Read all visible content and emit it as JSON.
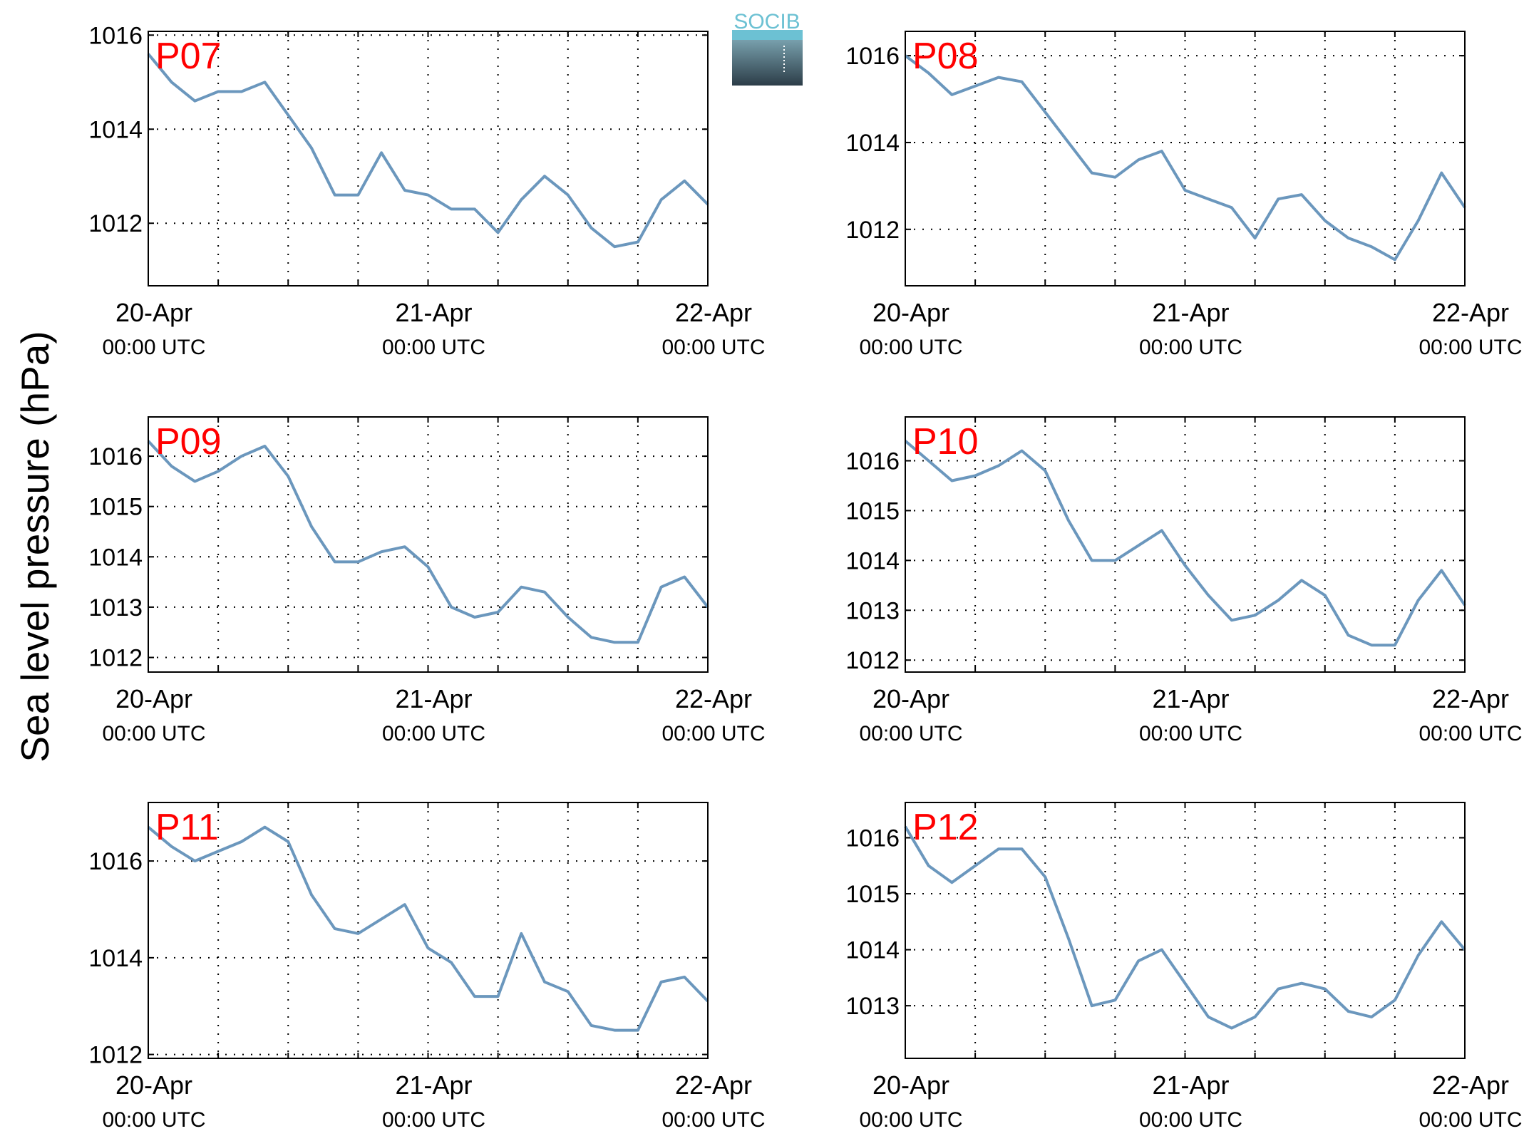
{
  "ylabel": "Sea level pressure (hPa)",
  "logo": "SOCIB",
  "chart_data": [
    {
      "type": "line",
      "label": "P07",
      "color": "#6b97bd",
      "grid": true,
      "x": [
        "20-Apr 00:00",
        "20-Apr 02:00",
        "20-Apr 04:00",
        "20-Apr 06:00",
        "20-Apr 08:00",
        "20-Apr 10:00",
        "20-Apr 12:00",
        "20-Apr 14:00",
        "20-Apr 16:00",
        "20-Apr 18:00",
        "20-Apr 20:00",
        "20-Apr 22:00",
        "21-Apr 00:00",
        "21-Apr 02:00",
        "21-Apr 04:00",
        "21-Apr 06:00",
        "21-Apr 08:00",
        "21-Apr 10:00",
        "21-Apr 12:00",
        "21-Apr 14:00",
        "21-Apr 16:00",
        "21-Apr 18:00",
        "21-Apr 20:00",
        "21-Apr 22:00",
        "22-Apr 00:00"
      ],
      "values": [
        1015.6,
        1015.0,
        1014.6,
        1014.8,
        1014.8,
        1015.0,
        1014.3,
        1013.6,
        1012.6,
        1012.6,
        1013.5,
        1012.7,
        1012.6,
        1012.3,
        1012.3,
        1011.8,
        1012.5,
        1013.0,
        1012.6,
        1011.9,
        1011.5,
        1011.6,
        1012.5,
        1012.9,
        1012.4
      ],
      "xlim": [
        "20-Apr 00:00",
        "22-Apr 00:00"
      ],
      "xticks": [
        {
          "value": "20-Apr 00:00",
          "label": [
            "20-Apr",
            "00:00 UTC"
          ]
        },
        {
          "value": "21-Apr 00:00",
          "label": [
            "21-Apr",
            "00:00 UTC"
          ]
        },
        {
          "value": "22-Apr 00:00",
          "label": [
            "22-Apr",
            "00:00 UTC"
          ]
        }
      ],
      "minor_xticks": [
        "20-Apr 06:00",
        "20-Apr 12:00",
        "20-Apr 18:00",
        "21-Apr 06:00",
        "21-Apr 12:00",
        "21-Apr 18:00"
      ],
      "ylim": [
        1010.67,
        1016.08
      ],
      "yticks": [
        1012,
        1014,
        1016
      ]
    },
    {
      "type": "line",
      "label": "P08",
      "color": "#6b97bd",
      "grid": true,
      "x": [
        "20-Apr 00:00",
        "20-Apr 02:00",
        "20-Apr 04:00",
        "20-Apr 06:00",
        "20-Apr 08:00",
        "20-Apr 10:00",
        "20-Apr 12:00",
        "20-Apr 14:00",
        "20-Apr 16:00",
        "20-Apr 18:00",
        "20-Apr 20:00",
        "20-Apr 22:00",
        "21-Apr 00:00",
        "21-Apr 02:00",
        "21-Apr 04:00",
        "21-Apr 06:00",
        "21-Apr 08:00",
        "21-Apr 10:00",
        "21-Apr 12:00",
        "21-Apr 14:00",
        "21-Apr 16:00",
        "21-Apr 18:00",
        "21-Apr 20:00",
        "21-Apr 22:00",
        "22-Apr 00:00"
      ],
      "values": [
        1016.0,
        1015.6,
        1015.1,
        1015.3,
        1015.5,
        1015.4,
        1014.7,
        1014.0,
        1013.3,
        1013.2,
        1013.6,
        1013.8,
        1012.9,
        1012.7,
        1012.5,
        1011.8,
        1012.7,
        1012.8,
        1012.2,
        1011.8,
        1011.6,
        1011.3,
        1012.2,
        1013.3,
        1012.5
      ],
      "xlim": [
        "20-Apr 00:00",
        "22-Apr 00:00"
      ],
      "xticks": [
        {
          "value": "20-Apr 00:00",
          "label": [
            "20-Apr",
            "00:00 UTC"
          ]
        },
        {
          "value": "21-Apr 00:00",
          "label": [
            "21-Apr",
            "00:00 UTC"
          ]
        },
        {
          "value": "22-Apr 00:00",
          "label": [
            "22-Apr",
            "00:00 UTC"
          ]
        }
      ],
      "minor_xticks": [
        "20-Apr 06:00",
        "20-Apr 12:00",
        "20-Apr 18:00",
        "21-Apr 06:00",
        "21-Apr 12:00",
        "21-Apr 18:00"
      ],
      "ylim": [
        1010.7,
        1016.56
      ],
      "yticks": [
        1012,
        1014,
        1016
      ]
    },
    {
      "type": "line",
      "label": "P09",
      "color": "#6b97bd",
      "grid": true,
      "x": [
        "20-Apr 00:00",
        "20-Apr 02:00",
        "20-Apr 04:00",
        "20-Apr 06:00",
        "20-Apr 08:00",
        "20-Apr 10:00",
        "20-Apr 12:00",
        "20-Apr 14:00",
        "20-Apr 16:00",
        "20-Apr 18:00",
        "20-Apr 20:00",
        "20-Apr 22:00",
        "21-Apr 00:00",
        "21-Apr 02:00",
        "21-Apr 04:00",
        "21-Apr 06:00",
        "21-Apr 08:00",
        "21-Apr 10:00",
        "21-Apr 12:00",
        "21-Apr 14:00",
        "21-Apr 16:00",
        "21-Apr 18:00",
        "21-Apr 20:00",
        "21-Apr 22:00",
        "22-Apr 00:00"
      ],
      "values": [
        1016.3,
        1015.8,
        1015.5,
        1015.7,
        1016.0,
        1016.2,
        1015.6,
        1014.6,
        1013.9,
        1013.9,
        1014.1,
        1014.2,
        1013.8,
        1013.0,
        1012.8,
        1012.9,
        1013.4,
        1013.3,
        1012.8,
        1012.4,
        1012.3,
        1012.3,
        1013.4,
        1013.6,
        1013.0
      ],
      "xlim": [
        "20-Apr 00:00",
        "22-Apr 00:00"
      ],
      "xticks": [
        {
          "value": "20-Apr 00:00",
          "label": [
            "20-Apr",
            "00:00 UTC"
          ]
        },
        {
          "value": "21-Apr 00:00",
          "label": [
            "21-Apr",
            "00:00 UTC"
          ]
        },
        {
          "value": "22-Apr 00:00",
          "label": [
            "22-Apr",
            "00:00 UTC"
          ]
        }
      ],
      "minor_xticks": [
        "20-Apr 06:00",
        "20-Apr 12:00",
        "20-Apr 18:00",
        "21-Apr 06:00",
        "21-Apr 12:00",
        "21-Apr 18:00"
      ],
      "ylim": [
        1011.71,
        1016.78
      ],
      "yticks": [
        1012,
        1013,
        1014,
        1015,
        1016
      ]
    },
    {
      "type": "line",
      "label": "P10",
      "color": "#6b97bd",
      "grid": true,
      "x": [
        "20-Apr 00:00",
        "20-Apr 02:00",
        "20-Apr 04:00",
        "20-Apr 06:00",
        "20-Apr 08:00",
        "20-Apr 10:00",
        "20-Apr 12:00",
        "20-Apr 14:00",
        "20-Apr 16:00",
        "20-Apr 18:00",
        "20-Apr 20:00",
        "20-Apr 22:00",
        "21-Apr 00:00",
        "21-Apr 02:00",
        "21-Apr 04:00",
        "21-Apr 06:00",
        "21-Apr 08:00",
        "21-Apr 10:00",
        "21-Apr 12:00",
        "21-Apr 14:00",
        "21-Apr 16:00",
        "21-Apr 18:00",
        "21-Apr 20:00",
        "21-Apr 22:00",
        "22-Apr 00:00"
      ],
      "values": [
        1016.4,
        1016.0,
        1015.6,
        1015.7,
        1015.9,
        1016.2,
        1015.8,
        1014.8,
        1014.0,
        1014.0,
        1014.3,
        1014.6,
        1013.9,
        1013.3,
        1012.8,
        1012.9,
        1013.2,
        1013.6,
        1013.3,
        1012.5,
        1012.3,
        1012.3,
        1013.2,
        1013.8,
        1013.1
      ],
      "xlim": [
        "20-Apr 00:00",
        "22-Apr 00:00"
      ],
      "xticks": [
        {
          "value": "20-Apr 00:00",
          "label": [
            "20-Apr",
            "00:00 UTC"
          ]
        },
        {
          "value": "21-Apr 00:00",
          "label": [
            "21-Apr",
            "00:00 UTC"
          ]
        },
        {
          "value": "22-Apr 00:00",
          "label": [
            "22-Apr",
            "00:00 UTC"
          ]
        }
      ],
      "minor_xticks": [
        "20-Apr 06:00",
        "20-Apr 12:00",
        "20-Apr 18:00",
        "21-Apr 06:00",
        "21-Apr 12:00",
        "21-Apr 18:00"
      ],
      "ylim": [
        1011.76,
        1016.88
      ],
      "yticks": [
        1012,
        1013,
        1014,
        1015,
        1016
      ]
    },
    {
      "type": "line",
      "label": "P11",
      "color": "#6b97bd",
      "grid": true,
      "x": [
        "20-Apr 00:00",
        "20-Apr 02:00",
        "20-Apr 04:00",
        "20-Apr 06:00",
        "20-Apr 08:00",
        "20-Apr 10:00",
        "20-Apr 12:00",
        "20-Apr 14:00",
        "20-Apr 16:00",
        "20-Apr 18:00",
        "20-Apr 20:00",
        "20-Apr 22:00",
        "21-Apr 00:00",
        "21-Apr 02:00",
        "21-Apr 04:00",
        "21-Apr 06:00",
        "21-Apr 08:00",
        "21-Apr 10:00",
        "21-Apr 12:00",
        "21-Apr 14:00",
        "21-Apr 16:00",
        "21-Apr 18:00",
        "21-Apr 20:00",
        "21-Apr 22:00",
        "22-Apr 00:00"
      ],
      "values": [
        1016.7,
        1016.3,
        1016.0,
        1016.2,
        1016.4,
        1016.7,
        1016.4,
        1015.3,
        1014.6,
        1014.5,
        1014.8,
        1015.1,
        1014.2,
        1013.9,
        1013.2,
        1013.2,
        1014.5,
        1013.5,
        1013.3,
        1012.6,
        1012.5,
        1012.5,
        1013.5,
        1013.6,
        1013.1
      ],
      "xlim": [
        "20-Apr 00:00",
        "22-Apr 00:00"
      ],
      "xticks": [
        {
          "value": "20-Apr 00:00",
          "label": [
            "20-Apr",
            "00:00 UTC"
          ]
        },
        {
          "value": "21-Apr 00:00",
          "label": [
            "21-Apr",
            "00:00 UTC"
          ]
        },
        {
          "value": "22-Apr 00:00",
          "label": [
            "22-Apr",
            "00:00 UTC"
          ]
        }
      ],
      "minor_xticks": [
        "20-Apr 06:00",
        "20-Apr 12:00",
        "20-Apr 18:00",
        "21-Apr 06:00",
        "21-Apr 12:00",
        "21-Apr 18:00"
      ],
      "ylim": [
        1011.92,
        1017.21
      ],
      "yticks": [
        1012,
        1014,
        1016
      ]
    },
    {
      "type": "line",
      "label": "P12",
      "color": "#6b97bd",
      "grid": true,
      "x": [
        "20-Apr 00:00",
        "20-Apr 02:00",
        "20-Apr 04:00",
        "20-Apr 06:00",
        "20-Apr 08:00",
        "20-Apr 10:00",
        "20-Apr 12:00",
        "20-Apr 14:00",
        "20-Apr 16:00",
        "20-Apr 18:00",
        "20-Apr 20:00",
        "20-Apr 22:00",
        "21-Apr 00:00",
        "21-Apr 02:00",
        "21-Apr 04:00",
        "21-Apr 06:00",
        "21-Apr 08:00",
        "21-Apr 10:00",
        "21-Apr 12:00",
        "21-Apr 14:00",
        "21-Apr 16:00",
        "21-Apr 18:00",
        "21-Apr 20:00",
        "21-Apr 22:00",
        "22-Apr 00:00"
      ],
      "values": [
        1016.2,
        1015.5,
        1015.2,
        1015.5,
        1015.8,
        1015.8,
        1015.3,
        1014.2,
        1013.0,
        1013.1,
        1013.8,
        1014.0,
        1013.4,
        1012.8,
        1012.6,
        1012.8,
        1013.3,
        1013.4,
        1013.3,
        1012.9,
        1012.8,
        1013.1,
        1013.9,
        1014.5,
        1014.0
      ],
      "xlim": [
        "20-Apr 00:00",
        "22-Apr 00:00"
      ],
      "xticks": [
        {
          "value": "20-Apr 00:00",
          "label": [
            "20-Apr",
            "00:00 UTC"
          ]
        },
        {
          "value": "21-Apr 00:00",
          "label": [
            "21-Apr",
            "00:00 UTC"
          ]
        },
        {
          "value": "22-Apr 00:00",
          "label": [
            "22-Apr",
            "00:00 UTC"
          ]
        }
      ],
      "minor_xticks": [
        "20-Apr 06:00",
        "20-Apr 12:00",
        "20-Apr 18:00",
        "21-Apr 06:00",
        "21-Apr 12:00",
        "21-Apr 18:00"
      ],
      "ylim": [
        1012.06,
        1016.63
      ],
      "yticks": [
        1013,
        1014,
        1015,
        1016
      ]
    }
  ]
}
